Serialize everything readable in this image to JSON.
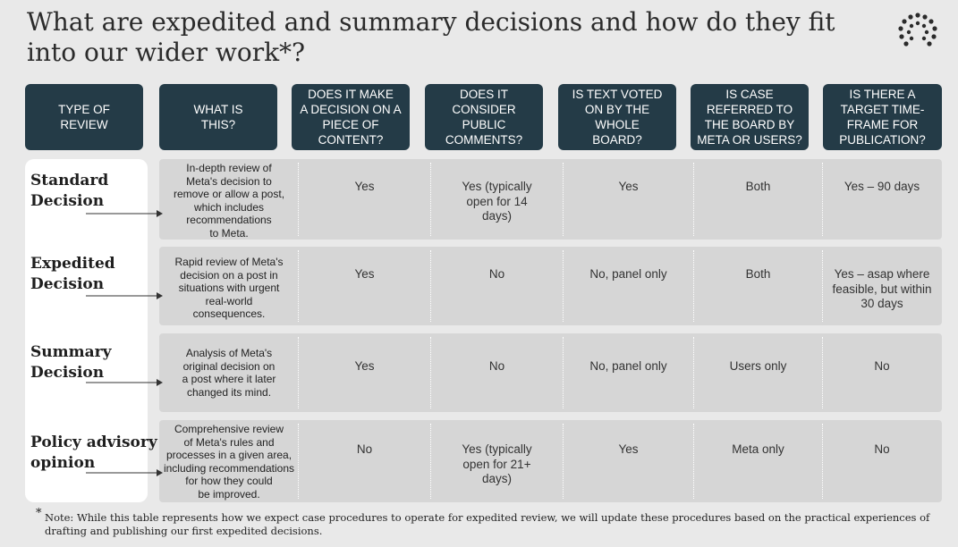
{
  "title": "What are expedited and summary decisions and how do they fit\ninto our wider work*?",
  "logo_icon": "dotted-circle-logo",
  "headers": [
    "TYPE OF\nREVIEW",
    "WHAT IS\nTHIS?",
    "DOES IT MAKE\nA DECISION ON A\nPIECE OF\nCONTENT?",
    "DOES IT\nCONSIDER\nPUBLIC\nCOMMENTS?",
    "IS TEXT VOTED\nON BY THE\nWHOLE\nBOARD?",
    "IS CASE\nREFERRED TO\nTHE BOARD BY\nMETA OR USERS?",
    "IS THERE A\nTARGET TIME-\nFRAME FOR\nPUBLICATION?"
  ],
  "rows": [
    {
      "type": "Standard\nDecision",
      "description": "In-depth review of\nMeta's decision to\nremove or allow a post,\nwhich includes\nrecommendations\nto Meta.",
      "cells": [
        "Yes",
        "Yes (typically\nopen for 14\ndays)",
        "Yes",
        "Both",
        "Yes – 90 days"
      ]
    },
    {
      "type": "Expedited\nDecision",
      "description": "Rapid review of Meta's\ndecision on a post in\nsituations with urgent\nreal-world\nconsequences.",
      "cells": [
        "Yes",
        "No",
        "No, panel only",
        "Both",
        "Yes – asap where\nfeasible, but within\n30 days"
      ]
    },
    {
      "type": "Summary\nDecision",
      "description": "Analysis of Meta's\noriginal decision on\na post where it later\nchanged its mind.",
      "cells": [
        "Yes",
        "No",
        "No, panel only",
        "Users only",
        "No"
      ]
    },
    {
      "type": "Policy advisory\nopinion",
      "description": "Comprehensive review\nof Meta's rules and\nprocesses in a given area,\nincluding recommendations\nfor how they could\nbe improved.",
      "cells": [
        "No",
        "Yes (typically\nopen for 21+\ndays)",
        "Yes",
        "Meta only",
        "No"
      ]
    }
  ],
  "footnote": {
    "marker": "*",
    "text": "Note: While this table represents how we expect case procedures to operate for expedited review, we will update these procedures based on the practical experiences of drafting and publishing our first expedited decisions."
  },
  "colors": {
    "header_bg": "#243b47",
    "row_bg": "#d6d6d6",
    "page_bg": "#e9e9e9",
    "panel_bg": "#ffffff"
  }
}
